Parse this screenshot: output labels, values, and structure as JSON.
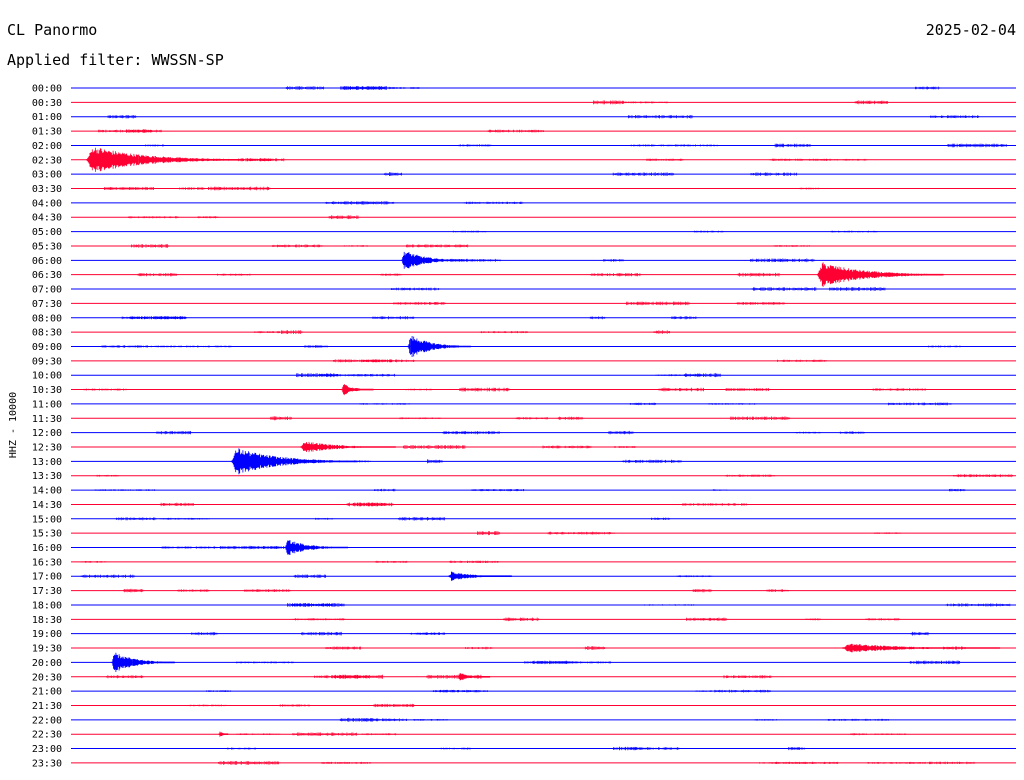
{
  "header": {
    "station": "CL Panormo",
    "date": "2025-02-04",
    "filter": "Applied filter: WWSSN-SP"
  },
  "chart_data": {
    "type": "line",
    "ylabel": "HHZ - 10000",
    "colors": {
      "blue": "#0000ff",
      "red": "#ff0033"
    },
    "trace_color_order": [
      "blue",
      "red"
    ],
    "rows": [
      "00:00",
      "00:30",
      "01:00",
      "01:30",
      "02:00",
      "02:30",
      "03:00",
      "03:30",
      "04:00",
      "04:30",
      "05:00",
      "05:30",
      "06:00",
      "06:30",
      "07:00",
      "07:30",
      "08:00",
      "08:30",
      "09:00",
      "09:30",
      "10:00",
      "10:30",
      "11:00",
      "11:30",
      "12:00",
      "12:30",
      "13:00",
      "13:30",
      "14:00",
      "14:30",
      "15:00",
      "15:30",
      "16:00",
      "16:30",
      "17:00",
      "17:30",
      "18:00",
      "18:30",
      "19:00",
      "19:30",
      "20:00",
      "20:30",
      "21:00",
      "21:30",
      "22:00",
      "22:30",
      "23:00",
      "23:30"
    ],
    "row_minutes": 30,
    "events": [
      {
        "row": "02:30",
        "minute": 0.5,
        "amplitude": 1.0,
        "duration_min": 5
      },
      {
        "row": "06:00",
        "minute": 10.5,
        "amplitude": 0.75,
        "duration_min": 2
      },
      {
        "row": "06:30",
        "minute": 23.7,
        "amplitude": 0.9,
        "duration_min": 4
      },
      {
        "row": "09:00",
        "minute": 10.7,
        "amplitude": 0.85,
        "duration_min": 2
      },
      {
        "row": "10:30",
        "minute": 8.6,
        "amplitude": 0.45,
        "duration_min": 1
      },
      {
        "row": "12:30",
        "minute": 7.3,
        "amplitude": 0.45,
        "duration_min": 3
      },
      {
        "row": "13:00",
        "minute": 5.1,
        "amplitude": 1.0,
        "duration_min": 4
      },
      {
        "row": "16:00",
        "minute": 6.8,
        "amplitude": 0.6,
        "duration_min": 2
      },
      {
        "row": "17:00",
        "minute": 12.0,
        "amplitude": 0.35,
        "duration_min": 2
      },
      {
        "row": "19:30",
        "minute": 24.5,
        "amplitude": 0.35,
        "duration_min": 5
      },
      {
        "row": "20:00",
        "minute": 1.3,
        "amplitude": 0.75,
        "duration_min": 2
      },
      {
        "row": "20:30",
        "minute": 12.3,
        "amplitude": 0.3,
        "duration_min": 1
      },
      {
        "row": "22:30",
        "minute": 4.7,
        "amplitude": 0.3,
        "duration_min": 0.3
      }
    ]
  }
}
